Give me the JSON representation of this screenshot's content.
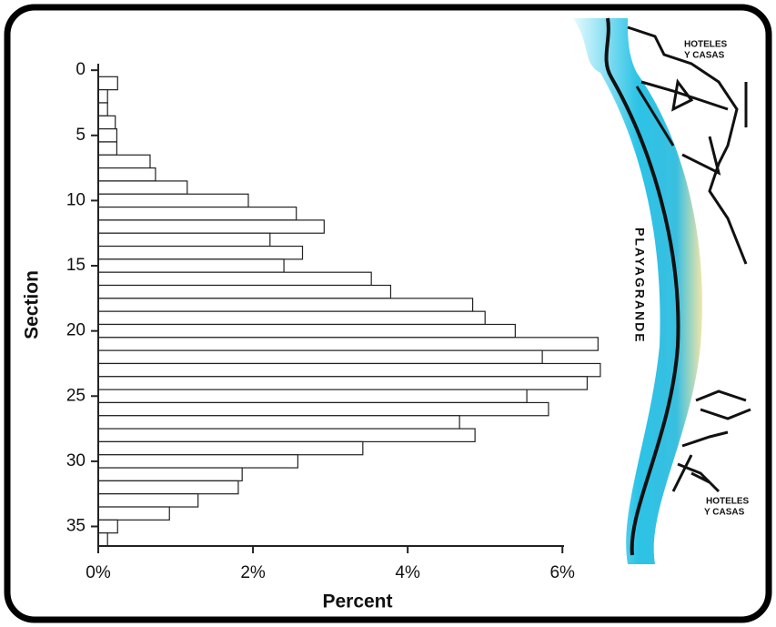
{
  "chart_data": {
    "type": "bar",
    "orientation": "horizontal",
    "y_label": "Section",
    "x_label": "Percent",
    "y": [
      1,
      2,
      3,
      4,
      5,
      6,
      7,
      8,
      9,
      10,
      11,
      12,
      13,
      14,
      15,
      16,
      17,
      18,
      19,
      20,
      21,
      22,
      23,
      24,
      25,
      26,
      27,
      28,
      29,
      30,
      31,
      32,
      33,
      34,
      35,
      36
    ],
    "values": [
      0.25,
      0.12,
      0.12,
      0.22,
      0.24,
      0.24,
      0.67,
      0.74,
      1.15,
      1.94,
      2.56,
      2.92,
      2.22,
      2.64,
      2.4,
      3.53,
      3.78,
      4.84,
      5.0,
      5.39,
      6.46,
      5.74,
      6.49,
      6.32,
      5.54,
      5.82,
      4.67,
      4.87,
      3.42,
      2.58,
      1.86,
      1.81,
      1.29,
      0.92,
      0.25,
      0.12
    ],
    "color": "#ffffff",
    "edge_color": "#222222",
    "ylim": [
      -0.5,
      36.5
    ],
    "yticks": [
      0,
      5,
      10,
      15,
      20,
      25,
      30,
      35
    ],
    "xlim": [
      0,
      6.55
    ],
    "xticks": [
      {
        "value": 0,
        "label": "0%"
      },
      {
        "value": 2,
        "label": "2%"
      },
      {
        "value": 4,
        "label": "4%"
      },
      {
        "value": 6,
        "label": "6%"
      }
    ],
    "annotations": [
      "HOTELES",
      "Y CASAS",
      "PLAYAGRANDE",
      "HOTELES",
      "Y CASAS"
    ]
  }
}
